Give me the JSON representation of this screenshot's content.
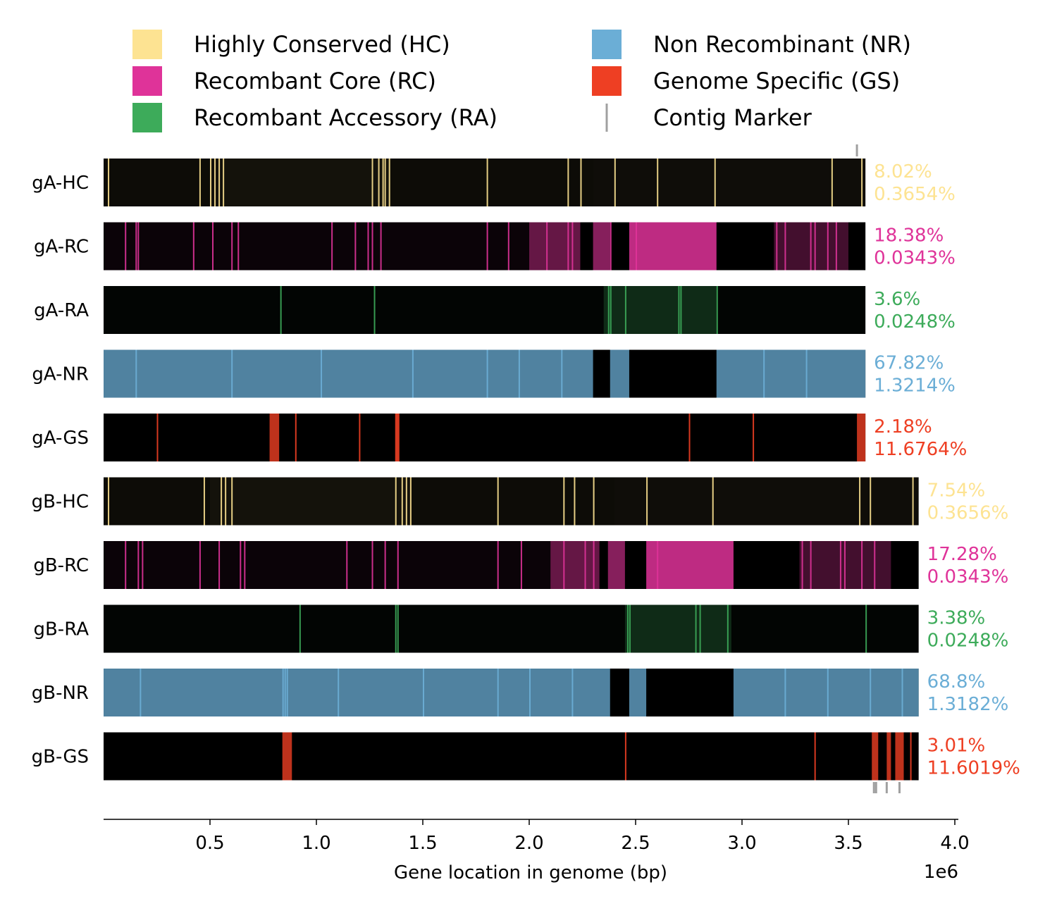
{
  "chart_data": {
    "type": "genome-track",
    "xlabel": "Gene location in genome (bp)",
    "x_offset_label": "1e6",
    "xlim": [
      0,
      4000000
    ],
    "xticks": [
      500000,
      1000000,
      1500000,
      2000000,
      2500000,
      3000000,
      3500000,
      4000000
    ],
    "xtick_labels": [
      "0.5",
      "1.0",
      "1.5",
      "2.0",
      "2.5",
      "3.0",
      "3.5",
      "4.0"
    ],
    "legend": [
      {
        "label": "Highly Conserved (HC)",
        "color": "#fde392",
        "marker": "square"
      },
      {
        "label": "Recombant Core (RC)",
        "color": "#df3399",
        "marker": "square"
      },
      {
        "label": "Recombant Accessory (RA)",
        "color": "#3dab5a",
        "marker": "square"
      },
      {
        "label": "Non Recombinant (NR)",
        "color": "#6baed6",
        "marker": "square"
      },
      {
        "label": "Genome Specific (GS)",
        "color": "#ee3f23",
        "marker": "square"
      },
      {
        "label": "Contig Marker",
        "color": "#a0a0a0",
        "marker": "line"
      }
    ],
    "genomes": [
      {
        "name": "gA",
        "length": 3580000,
        "contig_markers": [
          3540000
        ],
        "tracks": [
          {
            "label": "gA-HC",
            "category": "HC",
            "color": "#fde392",
            "pct_genes": "8.02%",
            "pct_other": "0.3654%",
            "segments": [
              [
                0,
                500000,
                0.05
              ],
              [
                500000,
                1350000,
                0.08
              ],
              [
                1350000,
                2300000,
                0.05
              ],
              [
                2300000,
                3580000,
                0.06
              ]
            ],
            "lines": [
              20000,
              450000,
              500000,
              520000,
              540000,
              560000,
              1260000,
              1290000,
              1310000,
              1320000,
              1340000,
              1800000,
              2180000,
              2240000,
              2400000,
              2600000,
              2870000,
              3420000,
              3560000
            ]
          },
          {
            "label": "gA-RC",
            "category": "RC",
            "color": "#df3399",
            "pct_genes": "18.38%",
            "pct_other": "0.0343%",
            "segments": [
              [
                0,
                2000000,
                0.05
              ],
              [
                2000000,
                2240000,
                0.45
              ],
              [
                2300000,
                2380000,
                0.6
              ],
              [
                2470000,
                2880000,
                0.85
              ],
              [
                3150000,
                3500000,
                0.3
              ]
            ],
            "lines": [
              100000,
              150000,
              160000,
              420000,
              510000,
              600000,
              630000,
              1070000,
              1180000,
              1240000,
              1260000,
              1300000,
              1800000,
              1900000,
              2080000,
              2180000,
              2200000,
              2380000,
              2500000,
              3160000,
              3200000,
              3320000,
              3340000,
              3400000,
              3440000
            ]
          },
          {
            "label": "gA-RA",
            "category": "RA",
            "color": "#3dab5a",
            "pct_genes": "3.6%",
            "pct_other": "0.0248%",
            "segments": [
              [
                0,
                2350000,
                0.03
              ],
              [
                2350000,
                2880000,
                0.25
              ],
              [
                2880000,
                3580000,
                0.03
              ]
            ],
            "lines": [
              830000,
              1270000,
              2370000,
              2380000,
              2450000,
              2700000,
              2710000,
              2880000
            ]
          },
          {
            "label": "gA-NR",
            "category": "NR",
            "color": "#6baed6",
            "pct_genes": "67.82%",
            "pct_other": "1.3214%",
            "segments": [
              [
                0,
                2300000,
                0.75
              ],
              [
                2380000,
                2470000,
                0.75
              ],
              [
                2880000,
                3580000,
                0.75
              ]
            ],
            "lines": [
              150000,
              600000,
              1020000,
              1450000,
              1800000,
              1950000,
              2150000,
              3100000,
              3300000
            ]
          },
          {
            "label": "gA-GS",
            "category": "GS",
            "color": "#ee3f23",
            "pct_genes": "2.18%",
            "pct_other": "11.6764%",
            "segments": [
              [
                780000,
                825000,
                0.8
              ],
              [
                1370000,
                1390000,
                0.9
              ],
              [
                3540000,
                3580000,
                0.8
              ]
            ],
            "lines": [
              250000,
              900000,
              1200000,
              2750000,
              3050000
            ]
          }
        ]
      },
      {
        "name": "gB",
        "length": 3830000,
        "contig_markers": [
          3620000,
          3630000,
          3680000,
          3740000
        ],
        "tracks": [
          {
            "label": "gB-HC",
            "category": "HC",
            "color": "#fde392",
            "pct_genes": "7.54%",
            "pct_other": "0.3656%",
            "segments": [
              [
                0,
                500000,
                0.05
              ],
              [
                500000,
                1450000,
                0.08
              ],
              [
                1450000,
                2400000,
                0.05
              ],
              [
                2400000,
                3830000,
                0.06
              ]
            ],
            "lines": [
              20000,
              470000,
              550000,
              570000,
              600000,
              1370000,
              1400000,
              1420000,
              1440000,
              1850000,
              2160000,
              2210000,
              2300000,
              2550000,
              2860000,
              3550000,
              3600000,
              3800000
            ]
          },
          {
            "label": "gB-RC",
            "category": "RC",
            "color": "#df3399",
            "pct_genes": "17.28%",
            "pct_other": "0.0343%",
            "segments": [
              [
                0,
                2100000,
                0.05
              ],
              [
                2100000,
                2330000,
                0.45
              ],
              [
                2370000,
                2450000,
                0.6
              ],
              [
                2550000,
                2960000,
                0.85
              ],
              [
                3270000,
                3700000,
                0.3
              ]
            ],
            "lines": [
              100000,
              160000,
              180000,
              450000,
              540000,
              640000,
              660000,
              1140000,
              1260000,
              1320000,
              1380000,
              1850000,
              1960000,
              2160000,
              2260000,
              2300000,
              2600000,
              3280000,
              3320000,
              3460000,
              3480000,
              3560000,
              3620000
            ]
          },
          {
            "label": "gB-RA",
            "category": "RA",
            "color": "#3dab5a",
            "pct_genes": "3.38%",
            "pct_other": "0.0248%",
            "segments": [
              [
                0,
                2450000,
                0.03
              ],
              [
                2450000,
                2950000,
                0.25
              ],
              [
                2950000,
                3830000,
                0.03
              ]
            ],
            "lines": [
              920000,
              1370000,
              1380000,
              2460000,
              2470000,
              2780000,
              2800000,
              2930000,
              3580000
            ]
          },
          {
            "label": "gB-NR",
            "category": "NR",
            "color": "#6baed6",
            "pct_genes": "68.8%",
            "pct_other": "1.3182%",
            "segments": [
              [
                0,
                2380000,
                0.75
              ],
              [
                2470000,
                2550000,
                0.75
              ],
              [
                2960000,
                3830000,
                0.75
              ]
            ],
            "lines": [
              170000,
              840000,
              850000,
              860000,
              1100000,
              1500000,
              1850000,
              2000000,
              2200000,
              3200000,
              3400000,
              3600000,
              3750000
            ]
          },
          {
            "label": "gB-GS",
            "category": "GS",
            "color": "#ee3f23",
            "pct_genes": "3.01%",
            "pct_other": "11.6019%",
            "segments": [
              [
                840000,
                885000,
                0.8
              ],
              [
                3610000,
                3640000,
                0.8
              ],
              [
                3680000,
                3700000,
                0.8
              ],
              [
                3720000,
                3760000,
                0.8
              ]
            ],
            "lines": [
              2450000,
              3340000,
              3790000
            ]
          }
        ]
      }
    ]
  }
}
